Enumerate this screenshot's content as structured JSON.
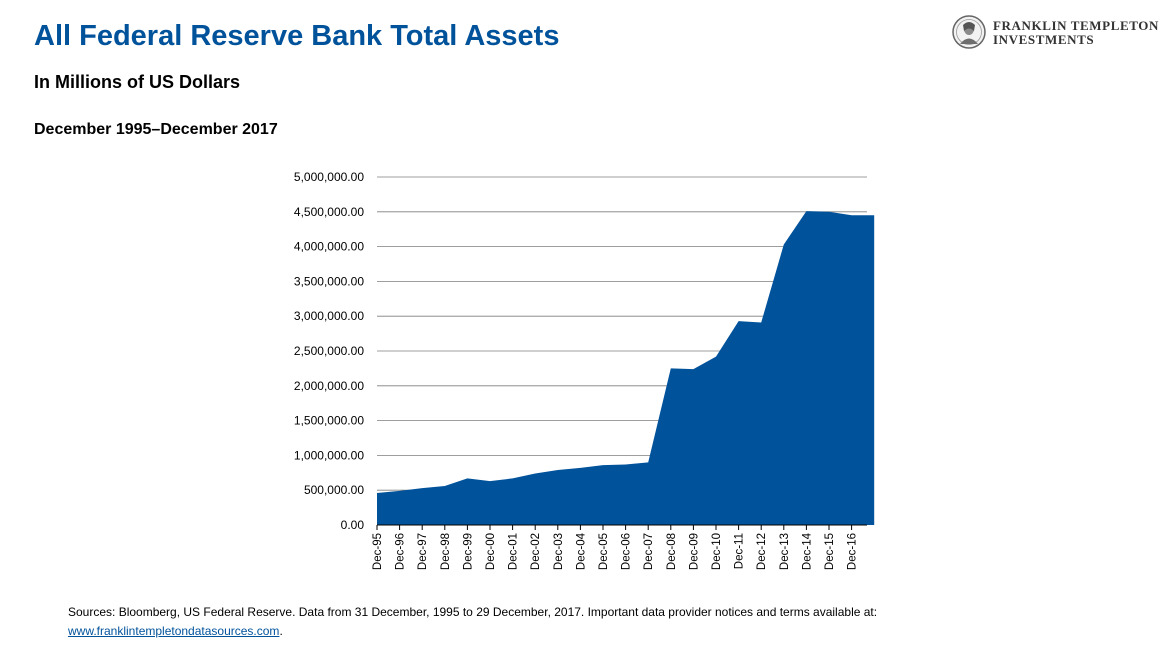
{
  "header": {
    "title": "All Federal Reserve Bank Total Assets",
    "subtitle": "In Millions of US Dollars",
    "period": "December 1995–December 2017"
  },
  "logo": {
    "line1": "FRANKLIN TEMPLETON",
    "line2": "INVESTMENTS",
    "icon": "benjamin-franklin-seal-icon"
  },
  "footer": {
    "sources_text": "Sources: Bloomberg, US Federal Reserve. Data from 31 December, 1995 to 29 December, 2017. Important data provider notices and terms available at:",
    "link_text": "www.franklintempletondatasources.com",
    "link_suffix": "."
  },
  "colors": {
    "title": "#00529b",
    "area_fill": "#00529b",
    "gridline": "#7f7f7f"
  },
  "chart_data": {
    "type": "area",
    "title": "",
    "xlabel": "",
    "ylabel": "",
    "ylim": [
      0,
      5000000
    ],
    "y_ticks": [
      "0.00",
      "500,000.00",
      "1,000,000.00",
      "1,500,000.00",
      "2,000,000.00",
      "2,500,000.00",
      "3,000,000.00",
      "3,500,000.00",
      "4,000,000.00",
      "4,500,000.00",
      "5,000,000.00"
    ],
    "x_tick_labels": [
      "Dec-95",
      "Dec-96",
      "Dec-97",
      "Dec-98",
      "Dec-99",
      "Dec-00",
      "Dec-01",
      "Dec-02",
      "Dec-03",
      "Dec-04",
      "Dec-05",
      "Dec-06",
      "Dec-07",
      "Dec-08",
      "Dec-09",
      "Dec-10",
      "Dec-11",
      "Dec-12",
      "Dec-13",
      "Dec-14",
      "Dec-15",
      "Dec-16"
    ],
    "grid": "horizontal",
    "legend": "none",
    "series": [
      {
        "values": [
          [
            "Dec-95",
            460000
          ],
          [
            "Dec-96",
            490000
          ],
          [
            "Dec-97",
            530000
          ],
          [
            "Dec-98",
            560000
          ],
          [
            "Dec-99",
            670000
          ],
          [
            "Dec-00",
            630000
          ],
          [
            "Dec-01",
            670000
          ],
          [
            "Dec-02",
            740000
          ],
          [
            "Dec-03",
            790000
          ],
          [
            "Dec-04",
            820000
          ],
          [
            "Dec-05",
            860000
          ],
          [
            "Dec-06",
            870000
          ],
          [
            "Dec-07",
            900000
          ],
          [
            "Dec-08",
            2250000
          ],
          [
            "Dec-09",
            2240000
          ],
          [
            "Dec-10",
            2420000
          ],
          [
            "Dec-11",
            2930000
          ],
          [
            "Dec-12",
            2910000
          ],
          [
            "Dec-13",
            4030000
          ],
          [
            "Dec-14",
            4510000
          ],
          [
            "Dec-15",
            4500000
          ],
          [
            "Dec-16",
            4450000
          ],
          [
            "Dec-17",
            4450000
          ]
        ]
      }
    ]
  }
}
